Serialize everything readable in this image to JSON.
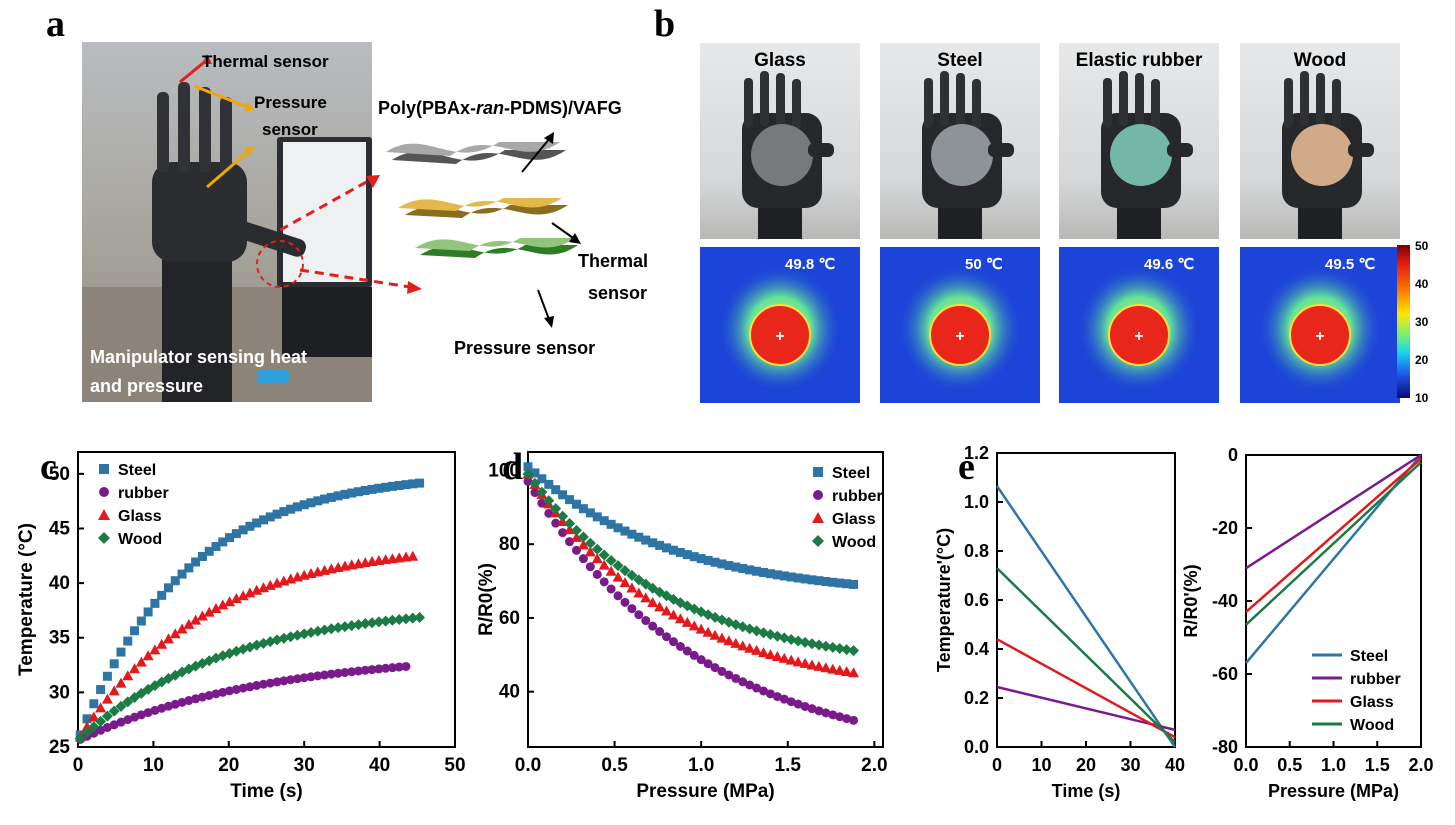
{
  "panel_labels": {
    "a": "a",
    "b": "b",
    "c": "c",
    "d": "d",
    "e": "e"
  },
  "panel_a": {
    "thermal_label": "Thermal sensor",
    "pressure_label_1": "Pressure",
    "pressure_label_2": "sensor",
    "caption_1": "Manipulator sensing heat",
    "caption_2": "and pressure",
    "layer_top_prefix": "Poly(PBAx-",
    "layer_top_italic": "ran",
    "layer_top_suffix": "-PDMS)/VAFG",
    "layer_mid_1": "Thermal",
    "layer_mid_2": "sensor",
    "layer_bottom": "Pressure sensor"
  },
  "panel_b": {
    "objects": [
      {
        "name": "Glass",
        "temp": "49.8 ℃",
        "color": "#7f8386"
      },
      {
        "name": "Steel",
        "temp": "50 ℃",
        "color": "#9a9ea3"
      },
      {
        "name": "Elastic rubber",
        "temp": "49.6 ℃",
        "color": "#7cc8b4"
      },
      {
        "name": "Wood",
        "temp": "49.5 ℃",
        "color": "#e4b993"
      }
    ],
    "colorbar_ticks": [
      "50",
      "40",
      "30",
      "20",
      "10"
    ]
  },
  "chart_data": [
    {
      "panel": "c",
      "type": "scatter",
      "xlabel": "Time (s)",
      "ylabel": "Temperature (°C)",
      "xlim": [
        0,
        50
      ],
      "ylim": [
        25,
        52
      ],
      "xticks": [
        "0",
        "10",
        "20",
        "30",
        "40",
        "50"
      ],
      "yticks": [
        "25",
        "30",
        "35",
        "40",
        "45",
        "50"
      ],
      "legend_position": "top-left",
      "series": [
        {
          "name": "Steel",
          "marker": "square",
          "color": "#2e75a6",
          "x_end": 46,
          "params": {
            "start": 25.6,
            "end": 49.2,
            "rate": 0.07
          }
        },
        {
          "name": "rubber",
          "marker": "circle",
          "color": "#7a1b8c",
          "x_end": 44,
          "params": {
            "start": 25.6,
            "end": 32.4,
            "rate": 0.04
          }
        },
        {
          "name": "Glass",
          "marker": "triangle",
          "color": "#e3191c",
          "x_end": 45,
          "params": {
            "start": 25.6,
            "end": 42.5,
            "rate": 0.06
          }
        },
        {
          "name": "Wood",
          "marker": "diamond",
          "color": "#1c7a45",
          "x_end": 46,
          "params": {
            "start": 25.6,
            "end": 36.9,
            "rate": 0.05
          }
        }
      ]
    },
    {
      "panel": "d",
      "type": "scatter",
      "xlabel": "Pressure (MPa)",
      "ylabel": "R/R0(%)",
      "xlim": [
        0,
        2.05
      ],
      "ylim": [
        25,
        105
      ],
      "xticks": [
        "0.0",
        "0.5",
        "1.0",
        "1.5",
        "2.0"
      ],
      "yticks": [
        "40",
        "60",
        "80",
        "100"
      ],
      "legend_position": "top-right",
      "series": [
        {
          "name": "Steel",
          "marker": "square",
          "color": "#2e75a6",
          "x_end": 1.9,
          "params": {
            "start": 101,
            "end": 69,
            "rate": 1.2
          }
        },
        {
          "name": "rubber",
          "marker": "circle",
          "color": "#7a1b8c",
          "x_end": 1.9,
          "params": {
            "start": 97,
            "end": 32,
            "rate": 1.0
          }
        },
        {
          "name": "Glass",
          "marker": "triangle",
          "color": "#e3191c",
          "x_end": 1.9,
          "params": {
            "start": 99,
            "end": 45,
            "rate": 1.2
          }
        },
        {
          "name": "Wood",
          "marker": "diamond",
          "color": "#1c7a45",
          "x_end": 1.9,
          "params": {
            "start": 99,
            "end": 51,
            "rate": 1.2
          }
        }
      ]
    },
    {
      "panel": "e-left",
      "type": "line",
      "xlabel": "Time (s)",
      "ylabel": "Temperature'(°C)",
      "xlim": [
        0,
        40
      ],
      "ylim": [
        0,
        1.2
      ],
      "xticks": [
        "0",
        "10",
        "20",
        "30",
        "40"
      ],
      "yticks": [
        "0.0",
        "0.2",
        "0.4",
        "0.6",
        "0.8",
        "1.0",
        "1.2"
      ],
      "series": [
        {
          "name": "Steel",
          "color": "#2e75a6",
          "points": [
            [
              0,
              1.065
            ],
            [
              40,
              -0.06
            ]
          ]
        },
        {
          "name": "rubber",
          "color": "#7a1b8c",
          "points": [
            [
              0,
              0.245
            ],
            [
              40,
              0.07
            ]
          ]
        },
        {
          "name": "Glass",
          "color": "#e3191c",
          "points": [
            [
              0,
              0.44
            ],
            [
              40,
              0.04
            ]
          ]
        },
        {
          "name": "Wood",
          "color": "#1c7a45",
          "points": [
            [
              0,
              0.73
            ],
            [
              40,
              0.02
            ]
          ]
        }
      ]
    },
    {
      "panel": "e-right",
      "type": "line",
      "xlabel": "Pressure (MPa)",
      "ylabel": "R/R0'(%)",
      "xlim": [
        0,
        2.0
      ],
      "ylim": [
        -80,
        0
      ],
      "xticks": [
        "0.0",
        "0.5",
        "1.0",
        "1.5",
        "2.0"
      ],
      "yticks": [
        "0",
        "-20",
        "-40",
        "-60",
        "-80"
      ],
      "legend_position": "bottom-right",
      "series": [
        {
          "name": "Steel",
          "color": "#2e75a6",
          "points": [
            [
              0,
              -57
            ],
            [
              2.0,
              0
            ]
          ]
        },
        {
          "name": "rubber",
          "color": "#7a1b8c",
          "points": [
            [
              0,
              -31
            ],
            [
              2.0,
              0
            ]
          ]
        },
        {
          "name": "Glass",
          "color": "#e3191c",
          "points": [
            [
              0,
              -43
            ],
            [
              2.0,
              -1
            ]
          ]
        },
        {
          "name": "Wood",
          "color": "#1c7a45",
          "points": [
            [
              0,
              -46.5
            ],
            [
              2.0,
              -2
            ]
          ]
        }
      ]
    }
  ]
}
